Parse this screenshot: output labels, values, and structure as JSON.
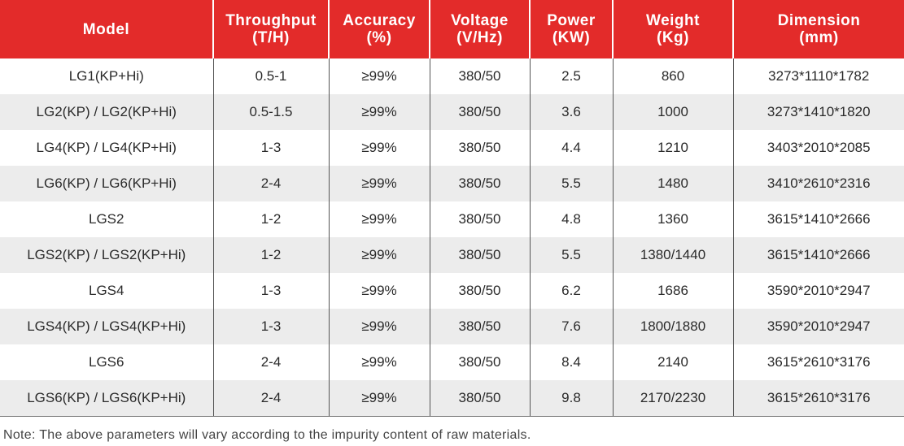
{
  "table": {
    "headers": [
      {
        "line1": "Model",
        "line2": ""
      },
      {
        "line1": "Throughput",
        "line2": "(T/H)"
      },
      {
        "line1": "Accuracy",
        "line2": "(%)"
      },
      {
        "line1": "Voltage",
        "line2": "(V/Hz)"
      },
      {
        "line1": "Power",
        "line2": "(KW)"
      },
      {
        "line1": "Weight",
        "line2": "(Kg)"
      },
      {
        "line1": "Dimension",
        "line2": "(mm)"
      }
    ],
    "rows": [
      [
        "LG1(KP+Hi)",
        "0.5-1",
        "≥99%",
        "380/50",
        "2.5",
        "860",
        "3273*1110*1782"
      ],
      [
        "LG2(KP) / LG2(KP+Hi)",
        "0.5-1.5",
        "≥99%",
        "380/50",
        "3.6",
        "1000",
        "3273*1410*1820"
      ],
      [
        "LG4(KP) / LG4(KP+Hi)",
        "1-3",
        "≥99%",
        "380/50",
        "4.4",
        "1210",
        "3403*2010*2085"
      ],
      [
        "LG6(KP) / LG6(KP+Hi)",
        "2-4",
        "≥99%",
        "380/50",
        "5.5",
        "1480",
        "3410*2610*2316"
      ],
      [
        "LGS2",
        "1-2",
        "≥99%",
        "380/50",
        "4.8",
        "1360",
        "3615*1410*2666"
      ],
      [
        "LGS2(KP) / LGS2(KP+Hi)",
        "1-2",
        "≥99%",
        "380/50",
        "5.5",
        "1380/1440",
        "3615*1410*2666"
      ],
      [
        "LGS4",
        "1-3",
        "≥99%",
        "380/50",
        "6.2",
        "1686",
        "3590*2010*2947"
      ],
      [
        "LGS4(KP) / LGS4(KP+Hi)",
        "1-3",
        "≥99%",
        "380/50",
        "7.6",
        "1800/1880",
        "3590*2010*2947"
      ],
      [
        "LGS6",
        "2-4",
        "≥99%",
        "380/50",
        "8.4",
        "2140",
        "3615*2610*3176"
      ],
      [
        "LGS6(KP) / LGS6(KP+Hi)",
        "2-4",
        "≥99%",
        "380/50",
        "9.8",
        "2170/2230",
        "3615*2610*3176"
      ]
    ]
  },
  "note": "Note: The above parameters will vary according to the impurity content of raw materials.",
  "colors": {
    "header_bg": "#e32b2a",
    "header_text": "#ffffff",
    "stripe_bg": "#ececec"
  }
}
